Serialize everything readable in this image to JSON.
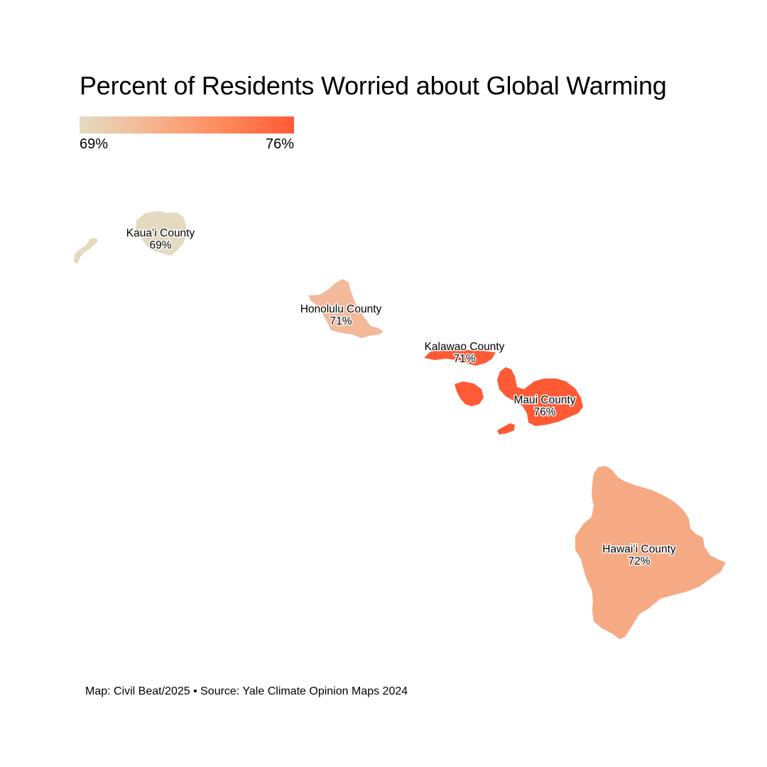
{
  "title": "Percent of Residents Worried about Global Warming",
  "legend": {
    "min_label": "69%",
    "max_label": "76%",
    "min_value": 69,
    "max_value": 76,
    "colors": [
      "#e3dcc2",
      "#f5b48f",
      "#ff8a5c",
      "#ff5a36"
    ]
  },
  "counties": [
    {
      "id": "kauai",
      "name": "Kauaʻi County",
      "value_label": "69%",
      "value": 69,
      "color": "#e3dac0"
    },
    {
      "id": "honolulu",
      "name": "Honolulu County",
      "value_label": "71%",
      "value": 71,
      "color": "#f2b99b"
    },
    {
      "id": "kalawao",
      "name": "Kalawao County",
      "value_label": "71%",
      "value": 71,
      "color": "#ff5a36"
    },
    {
      "id": "maui",
      "name": "Maui County",
      "value_label": "76%",
      "value": 76,
      "color": "#ff5a36"
    },
    {
      "id": "hawaii",
      "name": "Hawaiʻi County",
      "value_label": "72%",
      "value": 72,
      "color": "#f6aa84"
    }
  ],
  "credit": "Map: Civil Beat/2025 • Source: Yale Climate Opinion Maps 2024"
}
